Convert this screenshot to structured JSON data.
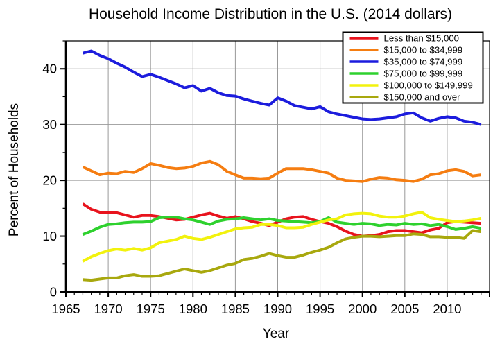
{
  "figure": {
    "title": "Household Income Distribution in the U.S. (2014 dollars)"
  },
  "chart_data": {
    "type": "line",
    "title": "Household Income Distribution in the U.S. (2014 dollars)",
    "xlabel": "Year",
    "ylabel": "Percent of Households",
    "xlim": [
      1965,
      2015
    ],
    "ylim": [
      0,
      45
    ],
    "grid": true,
    "legend_position": "top-right",
    "x_labeled_ticks": [
      1965,
      1970,
      1975,
      1980,
      1985,
      1990,
      1995,
      2000,
      2005,
      2010
    ],
    "y_labeled_ticks": [
      0,
      10,
      20,
      30,
      40
    ],
    "x_minor_step": 1,
    "x_major_step": 5,
    "y_minor_step": 5,
    "y_major_step": 10,
    "x": [
      1967,
      1968,
      1969,
      1970,
      1971,
      1972,
      1973,
      1974,
      1975,
      1976,
      1977,
      1978,
      1979,
      1980,
      1981,
      1982,
      1983,
      1984,
      1985,
      1986,
      1987,
      1988,
      1989,
      1990,
      1991,
      1992,
      1993,
      1994,
      1995,
      1996,
      1997,
      1998,
      1999,
      2000,
      2001,
      2002,
      2003,
      2004,
      2005,
      2006,
      2007,
      2008,
      2009,
      2010,
      2011,
      2012,
      2013,
      2014
    ],
    "series": [
      {
        "name": "Less than $15,000",
        "color": "#e8131d",
        "values": [
          15.8,
          14.8,
          14.3,
          14.2,
          14.2,
          13.8,
          13.4,
          13.7,
          13.7,
          13.5,
          13.2,
          12.9,
          13.0,
          13.4,
          13.8,
          14.1,
          13.6,
          13.2,
          13.5,
          13.1,
          12.6,
          12.3,
          11.9,
          12.5,
          13.1,
          13.4,
          13.5,
          13.0,
          12.6,
          12.3,
          11.7,
          10.9,
          10.3,
          10.0,
          10.1,
          10.3,
          10.8,
          11.0,
          11.0,
          10.8,
          10.6,
          11.1,
          11.4,
          12.4,
          12.6,
          12.5,
          12.4,
          12.3
        ]
      },
      {
        "name": "$15,000 to $34,999",
        "color": "#f57d11",
        "values": [
          22.4,
          21.7,
          21.0,
          21.3,
          21.2,
          21.6,
          21.4,
          22.1,
          23.0,
          22.7,
          22.3,
          22.1,
          22.2,
          22.5,
          23.1,
          23.4,
          22.8,
          21.6,
          21.0,
          20.4,
          20.4,
          20.3,
          20.4,
          21.3,
          22.1,
          22.1,
          22.1,
          21.9,
          21.6,
          21.3,
          20.4,
          20.0,
          19.9,
          19.8,
          20.2,
          20.5,
          20.4,
          20.1,
          20.0,
          19.8,
          20.2,
          21.0,
          21.2,
          21.7,
          21.9,
          21.6,
          20.8,
          21.0
        ]
      },
      {
        "name": "$35,000 to $74,999",
        "color": "#1c1cdd",
        "values": [
          42.8,
          43.2,
          42.4,
          41.8,
          41.0,
          40.3,
          39.4,
          38.6,
          39.0,
          38.5,
          37.9,
          37.3,
          36.6,
          37.0,
          36.0,
          36.5,
          35.7,
          35.2,
          35.1,
          34.6,
          34.2,
          33.8,
          33.5,
          34.8,
          34.2,
          33.4,
          33.1,
          32.8,
          33.2,
          32.3,
          31.9,
          31.6,
          31.3,
          31.0,
          30.9,
          31.0,
          31.2,
          31.4,
          31.9,
          32.1,
          31.2,
          30.6,
          31.1,
          31.4,
          31.2,
          30.6,
          30.4,
          30.0
        ]
      },
      {
        "name": "$75,000 to $99,999",
        "color": "#2ed12e",
        "values": [
          10.3,
          10.9,
          11.6,
          12.1,
          12.2,
          12.4,
          12.5,
          12.5,
          12.6,
          13.3,
          13.4,
          13.4,
          13.1,
          12.9,
          12.5,
          12.1,
          12.7,
          13.0,
          13.1,
          13.3,
          13.1,
          12.9,
          13.1,
          12.8,
          12.7,
          12.6,
          12.5,
          12.4,
          12.6,
          13.3,
          12.5,
          12.3,
          12.1,
          12.3,
          12.2,
          11.9,
          12.1,
          12.0,
          12.3,
          12.1,
          12.2,
          11.9,
          12.1,
          11.7,
          11.2,
          11.4,
          11.7,
          11.4
        ]
      },
      {
        "name": "$100,000 to $149,999",
        "color": "#f2f20d",
        "values": [
          5.5,
          6.3,
          6.9,
          7.4,
          7.7,
          7.5,
          7.8,
          7.5,
          7.9,
          8.8,
          9.1,
          9.4,
          10.0,
          9.6,
          9.4,
          9.8,
          10.3,
          10.8,
          11.3,
          11.5,
          11.6,
          12.1,
          12.1,
          11.9,
          11.5,
          11.5,
          11.6,
          12.1,
          12.5,
          12.9,
          13.1,
          13.8,
          14.0,
          14.1,
          14.0,
          13.6,
          13.4,
          13.4,
          13.6,
          14.0,
          14.3,
          13.3,
          13.0,
          12.8,
          12.6,
          12.7,
          12.9,
          13.2
        ]
      },
      {
        "name": "$150,000 and over",
        "color": "#a8a80e",
        "values": [
          2.2,
          2.1,
          2.3,
          2.5,
          2.5,
          2.9,
          3.1,
          2.8,
          2.8,
          2.9,
          3.3,
          3.7,
          4.1,
          3.8,
          3.5,
          3.8,
          4.3,
          4.8,
          5.1,
          5.8,
          6.0,
          6.4,
          6.9,
          6.5,
          6.2,
          6.2,
          6.6,
          7.1,
          7.5,
          8.0,
          8.8,
          9.5,
          9.8,
          10.0,
          10.0,
          9.9,
          10.0,
          10.1,
          10.1,
          10.4,
          10.3,
          9.9,
          9.9,
          9.8,
          9.8,
          9.6,
          11.0,
          10.8
        ]
      }
    ]
  },
  "style": {
    "background": "#ffffff",
    "grid_color": "#999999",
    "axis_color": "#000000",
    "text_color": "#000000",
    "legend_border_color": "#000000",
    "legend_fill": "#ffffff"
  }
}
